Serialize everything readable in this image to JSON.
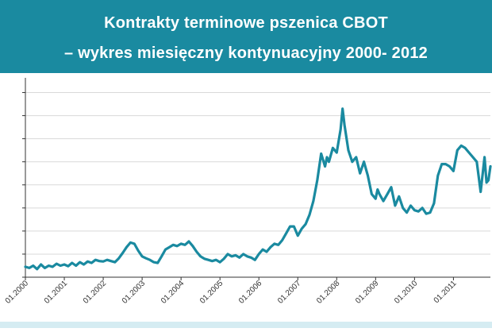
{
  "header": {
    "title_line1": "Kontrakty terminowe pszenica CBOT",
    "title_line2": "– wykres miesięczny kontynuacyjny 2000- 2012"
  },
  "colors": {
    "header_bg": "#1a8aa0",
    "line": "#1a8aa0",
    "grid": "#d9d9d9",
    "axis": "#333333",
    "band": "#d5ecf2"
  },
  "chart_data": {
    "type": "line",
    "title": "Kontrakty terminowe pszenica CBOT – wykres miesięczny kontynuacyjny 2000- 2012",
    "xlabel": "",
    "ylabel": "",
    "grid": true,
    "xlim": [
      2000.0,
      2011.95
    ],
    "ylim": [
      200,
      1050
    ],
    "yticks": [
      200,
      300,
      400,
      500,
      600,
      700,
      800,
      900,
      1000
    ],
    "xticks": [
      {
        "label": "01.2000",
        "x": 2000.0
      },
      {
        "label": "01.2001",
        "x": 2001.0
      },
      {
        "label": "01.2002",
        "x": 2002.0
      },
      {
        "label": "01.2003",
        "x": 2003.0
      },
      {
        "label": "01.2004",
        "x": 2004.0
      },
      {
        "label": "01.2005",
        "x": 2005.0
      },
      {
        "label": "01.2006",
        "x": 2006.0
      },
      {
        "label": "01.2007",
        "x": 2007.0
      },
      {
        "label": "01.2008",
        "x": 2008.0
      },
      {
        "label": "01.2009",
        "x": 2009.0
      },
      {
        "label": "01.2010",
        "x": 2010.0
      },
      {
        "label": "01.2011",
        "x": 2011.0
      }
    ],
    "series": [
      {
        "points": [
          [
            2000.0,
            245
          ],
          [
            2000.1,
            240
          ],
          [
            2000.2,
            250
          ],
          [
            2000.3,
            235
          ],
          [
            2000.4,
            255
          ],
          [
            2000.5,
            240
          ],
          [
            2000.6,
            250
          ],
          [
            2000.7,
            245
          ],
          [
            2000.8,
            258
          ],
          [
            2000.9,
            250
          ],
          [
            2001.0,
            255
          ],
          [
            2001.1,
            248
          ],
          [
            2001.2,
            262
          ],
          [
            2001.3,
            250
          ],
          [
            2001.4,
            265
          ],
          [
            2001.5,
            255
          ],
          [
            2001.6,
            268
          ],
          [
            2001.7,
            262
          ],
          [
            2001.8,
            275
          ],
          [
            2001.9,
            270
          ],
          [
            2002.0,
            268
          ],
          [
            2002.1,
            275
          ],
          [
            2002.2,
            270
          ],
          [
            2002.3,
            265
          ],
          [
            2002.4,
            282
          ],
          [
            2002.5,
            305
          ],
          [
            2002.6,
            330
          ],
          [
            2002.7,
            350
          ],
          [
            2002.8,
            345
          ],
          [
            2002.9,
            315
          ],
          [
            2003.0,
            290
          ],
          [
            2003.1,
            282
          ],
          [
            2003.2,
            275
          ],
          [
            2003.3,
            265
          ],
          [
            2003.4,
            262
          ],
          [
            2003.5,
            290
          ],
          [
            2003.6,
            320
          ],
          [
            2003.7,
            330
          ],
          [
            2003.8,
            340
          ],
          [
            2003.9,
            335
          ],
          [
            2004.0,
            345
          ],
          [
            2004.1,
            340
          ],
          [
            2004.2,
            355
          ],
          [
            2004.3,
            335
          ],
          [
            2004.4,
            310
          ],
          [
            2004.5,
            290
          ],
          [
            2004.6,
            280
          ],
          [
            2004.7,
            275
          ],
          [
            2004.8,
            270
          ],
          [
            2004.9,
            275
          ],
          [
            2005.0,
            265
          ],
          [
            2005.1,
            280
          ],
          [
            2005.2,
            300
          ],
          [
            2005.3,
            290
          ],
          [
            2005.4,
            295
          ],
          [
            2005.5,
            285
          ],
          [
            2005.6,
            300
          ],
          [
            2005.7,
            290
          ],
          [
            2005.8,
            285
          ],
          [
            2005.9,
            275
          ],
          [
            2006.0,
            300
          ],
          [
            2006.1,
            320
          ],
          [
            2006.2,
            310
          ],
          [
            2006.3,
            330
          ],
          [
            2006.4,
            345
          ],
          [
            2006.5,
            340
          ],
          [
            2006.6,
            360
          ],
          [
            2006.7,
            390
          ],
          [
            2006.8,
            420
          ],
          [
            2006.9,
            420
          ],
          [
            2007.0,
            380
          ],
          [
            2007.1,
            410
          ],
          [
            2007.2,
            430
          ],
          [
            2007.3,
            470
          ],
          [
            2007.4,
            530
          ],
          [
            2007.5,
            620
          ],
          [
            2007.6,
            735
          ],
          [
            2007.7,
            680
          ],
          [
            2007.75,
            720
          ],
          [
            2007.8,
            700
          ],
          [
            2007.9,
            760
          ],
          [
            2008.0,
            740
          ],
          [
            2008.1,
            840
          ],
          [
            2008.15,
            930
          ],
          [
            2008.2,
            860
          ],
          [
            2008.3,
            750
          ],
          [
            2008.4,
            700
          ],
          [
            2008.5,
            720
          ],
          [
            2008.6,
            650
          ],
          [
            2008.7,
            700
          ],
          [
            2008.8,
            640
          ],
          [
            2008.9,
            560
          ],
          [
            2009.0,
            540
          ],
          [
            2009.05,
            580
          ],
          [
            2009.1,
            560
          ],
          [
            2009.2,
            530
          ],
          [
            2009.3,
            560
          ],
          [
            2009.4,
            590
          ],
          [
            2009.5,
            510
          ],
          [
            2009.6,
            550
          ],
          [
            2009.7,
            500
          ],
          [
            2009.8,
            480
          ],
          [
            2009.9,
            510
          ],
          [
            2010.0,
            490
          ],
          [
            2010.1,
            485
          ],
          [
            2010.2,
            500
          ],
          [
            2010.3,
            475
          ],
          [
            2010.4,
            480
          ],
          [
            2010.5,
            520
          ],
          [
            2010.6,
            640
          ],
          [
            2010.7,
            690
          ],
          [
            2010.8,
            690
          ],
          [
            2010.9,
            680
          ],
          [
            2011.0,
            660
          ],
          [
            2011.1,
            750
          ],
          [
            2011.2,
            770
          ],
          [
            2011.3,
            760
          ],
          [
            2011.4,
            740
          ],
          [
            2011.5,
            720
          ],
          [
            2011.6,
            700
          ],
          [
            2011.7,
            570
          ],
          [
            2011.8,
            720
          ],
          [
            2011.85,
            610
          ],
          [
            2011.9,
            620
          ],
          [
            2011.95,
            680
          ]
        ]
      }
    ]
  }
}
